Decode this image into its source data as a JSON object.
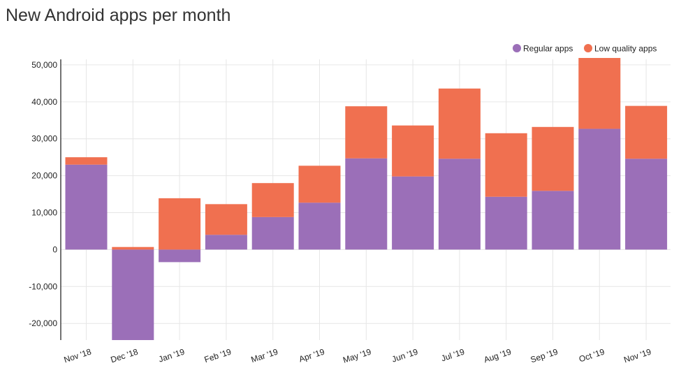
{
  "chart_data": {
    "type": "bar",
    "stacked": true,
    "title": "New Android apps per month",
    "xlabel": "",
    "ylabel": "",
    "categories": [
      "Nov '18",
      "Dec '18",
      "Jan '19",
      "Feb '19",
      "Mar '19",
      "Apr '19",
      "May '19",
      "Jun '19",
      "Jul '19",
      "Aug '19",
      "Sep '19",
      "Oct '19",
      "Nov '19"
    ],
    "series": [
      {
        "name": "Regular apps",
        "color": "#9b6fb8",
        "values": [
          23000,
          -25000,
          -3400,
          4000,
          8800,
          12700,
          24700,
          19800,
          24600,
          14300,
          15900,
          32700,
          24600
        ]
      },
      {
        "name": "Low quality apps",
        "color": "#f07050",
        "values": [
          2000,
          700,
          13900,
          8300,
          9200,
          10000,
          14100,
          13800,
          19000,
          17200,
          17300,
          19400,
          14300
        ]
      }
    ],
    "ylim": [
      -24500,
      51500
    ],
    "yticks": [
      50000,
      40000,
      30000,
      20000,
      10000,
      0,
      -10000,
      -20000
    ],
    "ytick_labels": [
      "50,000",
      "40,000",
      "30,000",
      "20,000",
      "10,000",
      "0",
      "-10,000",
      "-20,000"
    ],
    "grid": true,
    "legend": "top-right"
  }
}
